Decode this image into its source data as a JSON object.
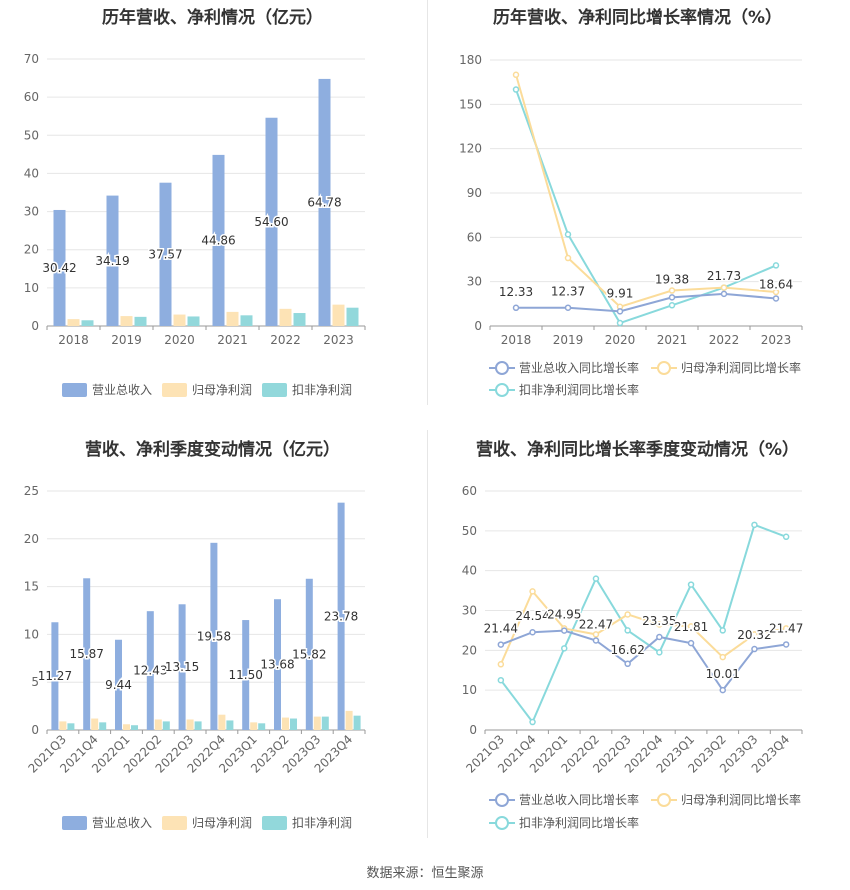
{
  "colors": {
    "revenue": "#8eaedf",
    "net_profit": "#fde3b5",
    "deducted_profit": "#92d8db",
    "revenue_line": "#8ea6d6",
    "net_line": "#fbdc9a",
    "deducted_line": "#88d9dc",
    "grid": "#e6e6e6",
    "axis_text": "#666666"
  },
  "source": "数据来源：恒生聚源",
  "chart_data": [
    {
      "type": "bar",
      "title": "历年营收、净利情况（亿元）",
      "categories": [
        "2018",
        "2019",
        "2020",
        "2021",
        "2022",
        "2023"
      ],
      "ylim": [
        0,
        70
      ],
      "yticks": [
        0,
        10,
        20,
        30,
        40,
        50,
        60,
        70
      ],
      "series": [
        {
          "name": "营业总收入",
          "values": [
            30.42,
            34.19,
            37.57,
            44.86,
            54.6,
            64.78
          ],
          "labels": [
            "30.42",
            "34.19",
            "37.57",
            "44.86",
            "54.60",
            "64.78"
          ]
        },
        {
          "name": "归母净利润",
          "values": [
            1.8,
            2.6,
            3.0,
            3.7,
            4.5,
            5.6
          ]
        },
        {
          "name": "扣非净利润",
          "values": [
            1.5,
            2.4,
            2.5,
            2.8,
            3.4,
            4.8
          ]
        }
      ],
      "legend": "bottom"
    },
    {
      "type": "line",
      "title": "历年营收、净利同比增长率情况（%）",
      "categories": [
        "2018",
        "2019",
        "2020",
        "2021",
        "2022",
        "2023"
      ],
      "ylim": [
        0,
        180
      ],
      "yticks": [
        0,
        30,
        60,
        90,
        120,
        150,
        180
      ],
      "series": [
        {
          "name": "营业总收入同比增长率",
          "values": [
            12.33,
            12.37,
            9.91,
            19.38,
            21.73,
            18.64
          ],
          "labels": [
            "12.33",
            "12.37",
            "9.91",
            "19.38",
            "21.73",
            "18.64"
          ]
        },
        {
          "name": "归母净利润同比增长率",
          "values": [
            170,
            46,
            13,
            24,
            26,
            23
          ]
        },
        {
          "name": "扣非净利润同比增长率",
          "values": [
            160,
            62,
            2,
            14,
            26,
            41
          ]
        }
      ],
      "legend": "bottom"
    },
    {
      "type": "bar",
      "title": "营收、净利季度变动情况（亿元）",
      "categories": [
        "2021Q3",
        "2021Q4",
        "2022Q1",
        "2022Q2",
        "2022Q3",
        "2022Q4",
        "2023Q1",
        "2023Q2",
        "2023Q3",
        "2023Q4"
      ],
      "ylim": [
        0,
        25
      ],
      "yticks": [
        0,
        5,
        10,
        15,
        20,
        25
      ],
      "series": [
        {
          "name": "营业总收入",
          "values": [
            11.27,
            15.87,
            9.44,
            12.43,
            13.15,
            19.58,
            11.5,
            13.68,
            15.82,
            23.78
          ],
          "labels": [
            "11.27",
            "15.87",
            "9.44",
            "12.43",
            "13.15",
            "19.58",
            "11.50",
            "13.68",
            "15.82",
            "23.78"
          ]
        },
        {
          "name": "归母净利润",
          "values": [
            0.9,
            1.2,
            0.6,
            1.1,
            1.1,
            1.6,
            0.8,
            1.3,
            1.4,
            2.0
          ]
        },
        {
          "name": "扣非净利润",
          "values": [
            0.7,
            0.8,
            0.5,
            0.9,
            0.9,
            1.0,
            0.7,
            1.2,
            1.4,
            1.5
          ]
        }
      ],
      "legend": "bottom"
    },
    {
      "type": "line",
      "title": "营收、净利同比增长率季度变动情况（%）",
      "categories": [
        "2021Q3",
        "2021Q4",
        "2022Q1",
        "2022Q2",
        "2022Q3",
        "2022Q4",
        "2023Q1",
        "2023Q2",
        "2023Q3",
        "2023Q4"
      ],
      "ylim": [
        0,
        60
      ],
      "yticks": [
        0,
        10,
        20,
        30,
        40,
        50,
        60
      ],
      "series": [
        {
          "name": "营业总收入同比增长率",
          "values": [
            21.44,
            24.54,
            24.95,
            22.47,
            16.62,
            23.35,
            21.81,
            10.01,
            20.32,
            21.47
          ],
          "labels": [
            "21.44",
            "24.54",
            "24.95",
            "22.47",
            "16.62",
            "23.35",
            "21.81",
            "10.01",
            "20.32",
            "21.47"
          ]
        },
        {
          "name": "归母净利润同比增长率",
          "values": [
            16.5,
            34.8,
            25.5,
            24.0,
            29.0,
            26.5,
            26.0,
            18.3,
            24.0,
            25.5
          ]
        },
        {
          "name": "扣非净利润同比增长率",
          "values": [
            12.5,
            2.0,
            20.5,
            38.0,
            25.0,
            19.5,
            36.5,
            25.0,
            51.5,
            48.5
          ]
        }
      ],
      "legend": "bottom"
    }
  ]
}
